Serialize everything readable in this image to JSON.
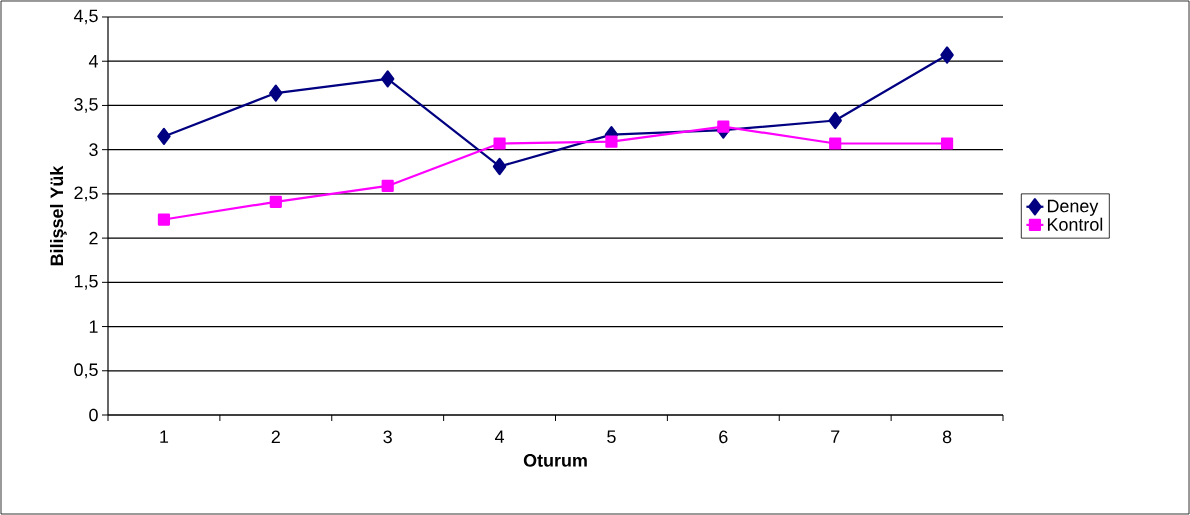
{
  "chart_data": {
    "type": "line",
    "xlabel": "Oturum",
    "ylabel": "Bilişsel Yük",
    "categories": [
      "1",
      "2",
      "3",
      "4",
      "5",
      "6",
      "7",
      "8"
    ],
    "series": [
      {
        "name": "Deney",
        "color": "#000080",
        "marker": "diamond",
        "values": [
          3.15,
          3.64,
          3.8,
          2.81,
          3.17,
          3.22,
          3.33,
          4.07
        ]
      },
      {
        "name": "Kontrol",
        "color": "#ff00ff",
        "marker": "square",
        "values": [
          2.21,
          2.41,
          2.59,
          3.07,
          3.09,
          3.26,
          3.07,
          3.07
        ]
      }
    ],
    "ylim": [
      0,
      4.5
    ],
    "yticks": [
      0,
      {
        "value": 0.5,
        "label": "0,5"
      },
      1,
      {
        "value": 1.5,
        "label": "1,5"
      },
      2,
      {
        "value": 2.5,
        "label": "2,5"
      },
      3,
      {
        "value": 3.5,
        "label": "3,5"
      },
      4,
      {
        "value": 4.5,
        "label": "4,5"
      }
    ],
    "grid": "y",
    "legend": "right",
    "line_style": "solid"
  }
}
